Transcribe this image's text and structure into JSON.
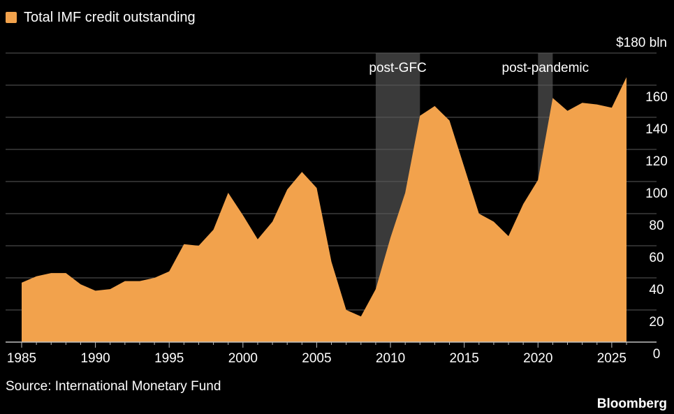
{
  "colors": {
    "area": "#F2A24C",
    "shade": "#3A3A3A",
    "grid": "#5A5A5A",
    "axis": "#BFBFBF",
    "text": "#FFFFFF",
    "background": "#000000"
  },
  "legend": {
    "label": "Total IMF credit outstanding",
    "icon": "square-swatch"
  },
  "source": "Source: International Monetary Fund",
  "brand": "Bloomberg",
  "chart_data": {
    "type": "area",
    "title": "Total IMF credit outstanding",
    "xlabel": "",
    "ylabel": "",
    "unit_label": "$180 bln",
    "x": [
      1985,
      1986,
      1987,
      1988,
      1989,
      1990,
      1991,
      1992,
      1993,
      1994,
      1995,
      1996,
      1997,
      1998,
      1999,
      2000,
      2001,
      2002,
      2003,
      2004,
      2005,
      2006,
      2007,
      2008,
      2009,
      2010,
      2011,
      2012,
      2013,
      2014,
      2015,
      2016,
      2017,
      2018,
      2019,
      2020,
      2021,
      2022,
      2023,
      2024,
      2025,
      2026
    ],
    "series": [
      {
        "name": "Total IMF credit outstanding",
        "values": [
          37,
          41,
          43,
          43,
          36,
          32,
          33,
          38,
          38,
          40,
          44,
          61,
          60,
          70,
          93,
          79,
          64,
          75,
          95,
          106,
          96,
          50,
          20,
          16,
          33,
          65,
          93,
          141,
          147,
          138,
          109,
          80,
          75,
          66,
          86,
          101,
          152,
          144,
          149,
          148,
          146,
          165
        ]
      }
    ],
    "xlim": [
      1985,
      2026
    ],
    "ylim": [
      0,
      180
    ],
    "x_ticks": [
      "1985",
      "1990",
      "1995",
      "2000",
      "2005",
      "2010",
      "2015",
      "2020",
      "2025"
    ],
    "y_ticks": [
      "0",
      "20",
      "40",
      "60",
      "80",
      "100",
      "120",
      "140",
      "160",
      "$180 bln"
    ],
    "shaded_periods": [
      {
        "label": "post-GFC",
        "start": 2009,
        "end": 2012
      },
      {
        "label": "post-pandemic",
        "start": 2020,
        "end": 2021
      }
    ],
    "grid": true,
    "legend_position": "top-left"
  }
}
